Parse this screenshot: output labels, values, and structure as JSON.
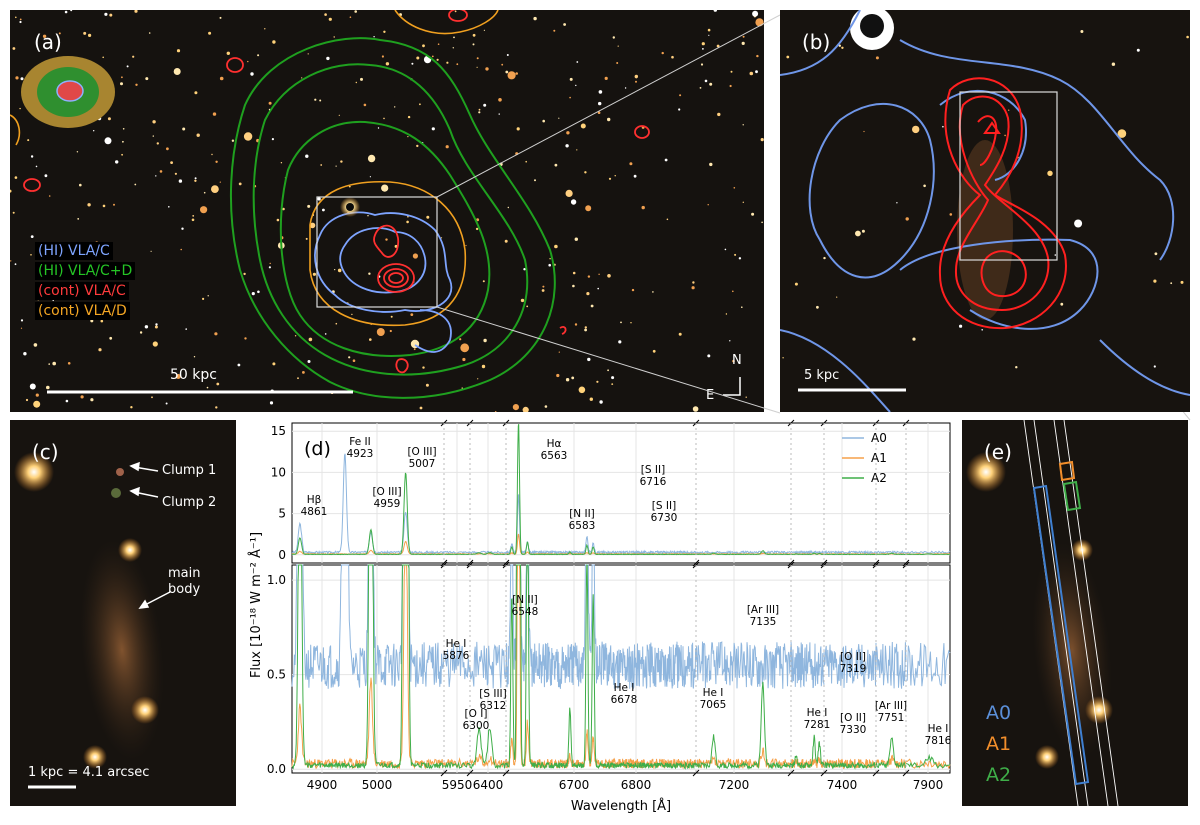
{
  "panel_a": {
    "label": "(a)",
    "legend": [
      {
        "text": "(HI) VLA/C",
        "color": "#7ea4ff"
      },
      {
        "text": "(HI) VLA/C+D",
        "color": "#25c425"
      },
      {
        "text": "(cont) VLA/C",
        "color": "#ff3b3b"
      },
      {
        "text": "(cont) VLA/D",
        "color": "#f5a623"
      }
    ],
    "scalebar": "50 kpc",
    "compass_n": "N",
    "compass_e": "E"
  },
  "panel_b": {
    "label": "(b)",
    "scalebar": "5 kpc"
  },
  "panel_c": {
    "label": "(c)",
    "clump1": "Clump 1",
    "clump2": "Clump 2",
    "main_body_1": "main",
    "main_body_2": "body",
    "scalebar": "1 kpc = 4.1 arcsec"
  },
  "panel_e": {
    "label": "(e)",
    "apertures": [
      {
        "name": "A0",
        "color": "#5b8fd8"
      },
      {
        "name": "A1",
        "color": "#f28e2b"
      },
      {
        "name": "A2",
        "color": "#3fae49"
      }
    ]
  },
  "chart_data": {
    "type": "line",
    "panel_label": "(d)",
    "xlabel": "Wavelength [Å]",
    "ylabel": "Flux [10⁻¹⁸ W m⁻² Å⁻¹]",
    "legend_position": "top-right",
    "series": [
      {
        "name": "A0",
        "color": "#8fb6de"
      },
      {
        "name": "A1",
        "color": "#f5a04a"
      },
      {
        "name": "A2",
        "color": "#3fae49"
      }
    ],
    "x_segments": [
      [
        4850,
        5060
      ],
      [
        5935,
        5960
      ],
      [
        6290,
        6330
      ],
      [
        6535,
        6960
      ],
      [
        7040,
        7175
      ],
      [
        7270,
        7340
      ],
      [
        7375,
        7455
      ],
      [
        7730,
        7770
      ],
      [
        7800,
        7830
      ]
    ],
    "x_ticks": [
      "4900",
      "5000",
      "5950",
      "6400",
      "6700",
      "6800",
      "7200",
      "7400",
      "7900"
    ],
    "top_panel": {
      "ylim": [
        -1,
        16
      ],
      "y_ticks": [
        "0",
        "5",
        "10",
        "15"
      ],
      "annotations": [
        {
          "line1": "Hβ",
          "line2": "4861"
        },
        {
          "line1": "Fe II",
          "line2": "4923"
        },
        {
          "line1": "[O III]",
          "line2": "4959"
        },
        {
          "line1": "[O III]",
          "line2": "5007"
        },
        {
          "line1": "Hα",
          "line2": "6563"
        },
        {
          "line1": "[N II]",
          "line2": "6583"
        },
        {
          "line1": "[S II]",
          "line2": "6716"
        },
        {
          "line1": "[S II]",
          "line2": "6730"
        }
      ]
    },
    "bottom_panel": {
      "ylim": [
        -0.02,
        1.08
      ],
      "y_ticks": [
        "0.0",
        "0.5",
        "1.0"
      ],
      "annotations": [
        {
          "line1": "He I",
          "line2": "5876"
        },
        {
          "line1": "[O I]",
          "line2": "6300"
        },
        {
          "line1": "[S III]",
          "line2": "6312"
        },
        {
          "line1": "[N II]",
          "line2": "6548"
        },
        {
          "line1": "He I",
          "line2": "6678"
        },
        {
          "line1": "He I",
          "line2": "7065"
        },
        {
          "line1": "[Ar III]",
          "line2": "7135"
        },
        {
          "line1": "He I",
          "line2": "7281"
        },
        {
          "line1": "[O II]",
          "line2": "7319"
        },
        {
          "line1": "[O II]",
          "line2": "7330"
        },
        {
          "line1": "[Ar III]",
          "line2": "7751"
        },
        {
          "line1": "He I",
          "line2": "7816"
        }
      ]
    }
  }
}
